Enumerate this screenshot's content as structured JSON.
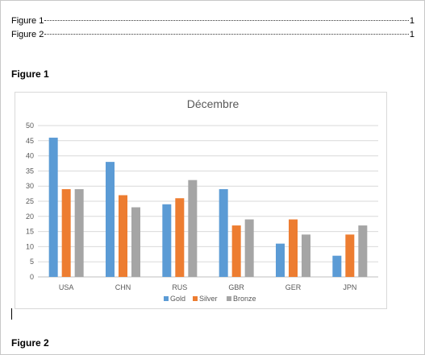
{
  "toc": [
    {
      "label": "Figure 1",
      "page": "1"
    },
    {
      "label": "Figure 2",
      "page": "1"
    }
  ],
  "headings": {
    "figure1": "Figure 1",
    "figure2": "Figure 2"
  },
  "chart_data": {
    "type": "bar",
    "title": "Décembre",
    "xlabel": "",
    "ylabel": "",
    "categories": [
      "USA",
      "CHN",
      "RUS",
      "GBR",
      "GER",
      "JPN"
    ],
    "series": [
      {
        "name": "Gold",
        "color": "#5b9bd5",
        "values": [
          46,
          38,
          24,
          29,
          11,
          7
        ]
      },
      {
        "name": "Silver",
        "color": "#ed7d31",
        "values": [
          29,
          27,
          26,
          17,
          19,
          14
        ]
      },
      {
        "name": "Bronze",
        "color": "#a5a5a5",
        "values": [
          29,
          23,
          32,
          19,
          14,
          17
        ]
      }
    ],
    "ylim": [
      0,
      50
    ],
    "yticks": [
      0,
      5,
      10,
      15,
      20,
      25,
      30,
      35,
      40,
      45,
      50
    ],
    "grid": true,
    "legend_position": "bottom"
  }
}
